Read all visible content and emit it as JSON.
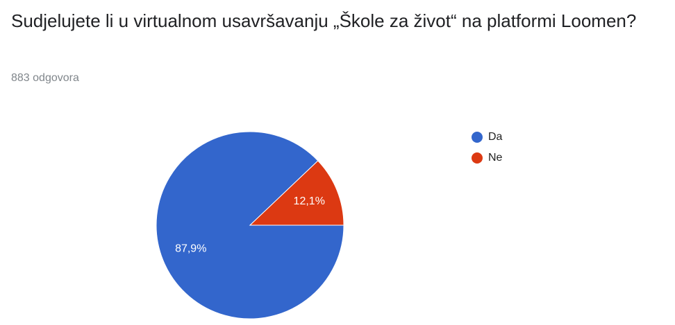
{
  "chart_data": {
    "type": "pie",
    "title": "Sudjelujete li u virtualnom usavršavanju „Škole za život“ na platformi Loomen?",
    "subtitle": "883 odgovora",
    "categories": [
      "Da",
      "Ne"
    ],
    "values": [
      87.9,
      12.1
    ],
    "value_labels": [
      "87,9%",
      "12,1%"
    ],
    "colors": [
      "#3366cc",
      "#dc3912"
    ],
    "legend": "right"
  }
}
